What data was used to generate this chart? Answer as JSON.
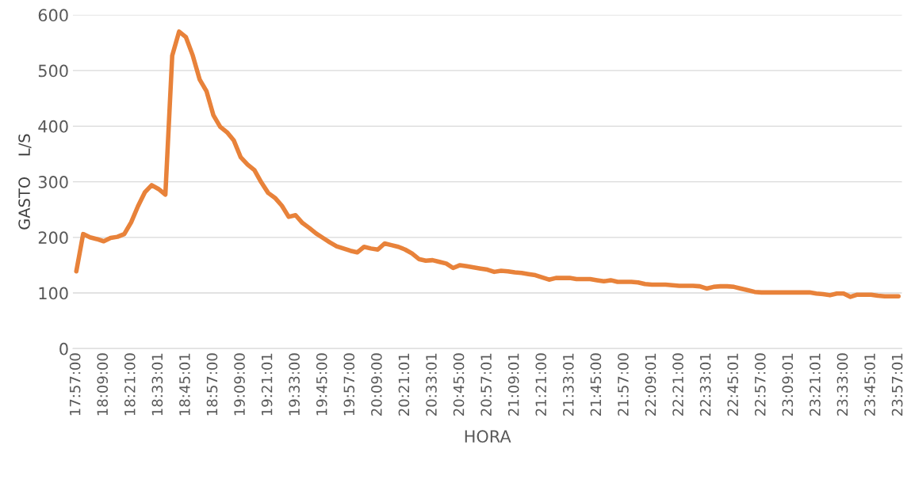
{
  "chart_data": {
    "type": "line",
    "xlabel": "HORA",
    "ylabel": "GASTO    L/S",
    "categories": [
      "17:57:00",
      null,
      null,
      null,
      "18:09:00",
      null,
      null,
      null,
      "18:21:00",
      null,
      null,
      null,
      "18:33:01",
      null,
      null,
      null,
      "18:45:01",
      null,
      null,
      null,
      "18:57:00",
      null,
      null,
      null,
      "19:09:00",
      null,
      null,
      null,
      "19:21:01",
      null,
      null,
      null,
      "19:33:00",
      null,
      null,
      null,
      "19:45:00",
      null,
      null,
      null,
      "19:57:00",
      null,
      null,
      null,
      "20:09:00",
      null,
      null,
      null,
      "20:21:01",
      null,
      null,
      null,
      "20:33:01",
      null,
      null,
      null,
      "20:45:00",
      null,
      null,
      null,
      "20:57:01",
      null,
      null,
      null,
      "21:09:01",
      null,
      null,
      null,
      "21:21:00",
      null,
      null,
      null,
      "21:33:01",
      null,
      null,
      null,
      "21:45:00",
      null,
      null,
      null,
      "21:57:00",
      null,
      null,
      null,
      "22:09:01",
      null,
      null,
      null,
      "22:21:00",
      null,
      null,
      null,
      "22:33:01",
      null,
      null,
      null,
      "22:45:01",
      null,
      null,
      null,
      "22:57:00",
      null,
      null,
      null,
      "23:09:01",
      null,
      null,
      null,
      "23:21:01",
      null,
      null,
      null,
      "23:33:00",
      null,
      null,
      null,
      "23:45:01",
      null,
      null,
      null,
      "23:57:01"
    ],
    "series": [
      {
        "color": "#e8823a",
        "values": [
          139,
          206,
          200,
          197,
          193,
          199,
          201,
          206,
          227,
          256,
          281,
          294,
          287,
          277,
          527,
          570,
          560,
          527,
          484,
          463,
          420,
          399,
          389,
          374,
          344,
          331,
          321,
          299,
          280,
          271,
          257,
          237,
          240,
          226,
          217,
          207,
          199,
          191,
          184,
          180,
          176,
          173,
          183,
          180,
          178,
          189,
          186,
          183,
          178,
          171,
          161,
          158,
          159,
          156,
          153,
          145,
          150,
          148,
          146,
          144,
          142,
          138,
          140,
          139,
          137,
          136,
          134,
          132,
          128,
          124,
          127,
          127,
          127,
          125,
          125,
          125,
          123,
          121,
          123,
          120,
          120,
          120,
          119,
          116,
          115,
          115,
          115,
          114,
          113,
          113,
          113,
          112,
          108,
          111,
          112,
          112,
          111,
          108,
          105,
          102,
          101,
          101,
          101,
          101,
          101,
          101,
          101,
          101,
          99,
          98,
          96,
          99,
          99,
          93,
          97,
          97,
          97,
          95,
          94,
          94,
          94
        ]
      }
    ],
    "ylim": [
      0,
      600
    ],
    "yticks": [
      0,
      100,
      200,
      300,
      400,
      500,
      600
    ],
    "grid": "y",
    "marker": "none",
    "line_style": "solid"
  }
}
